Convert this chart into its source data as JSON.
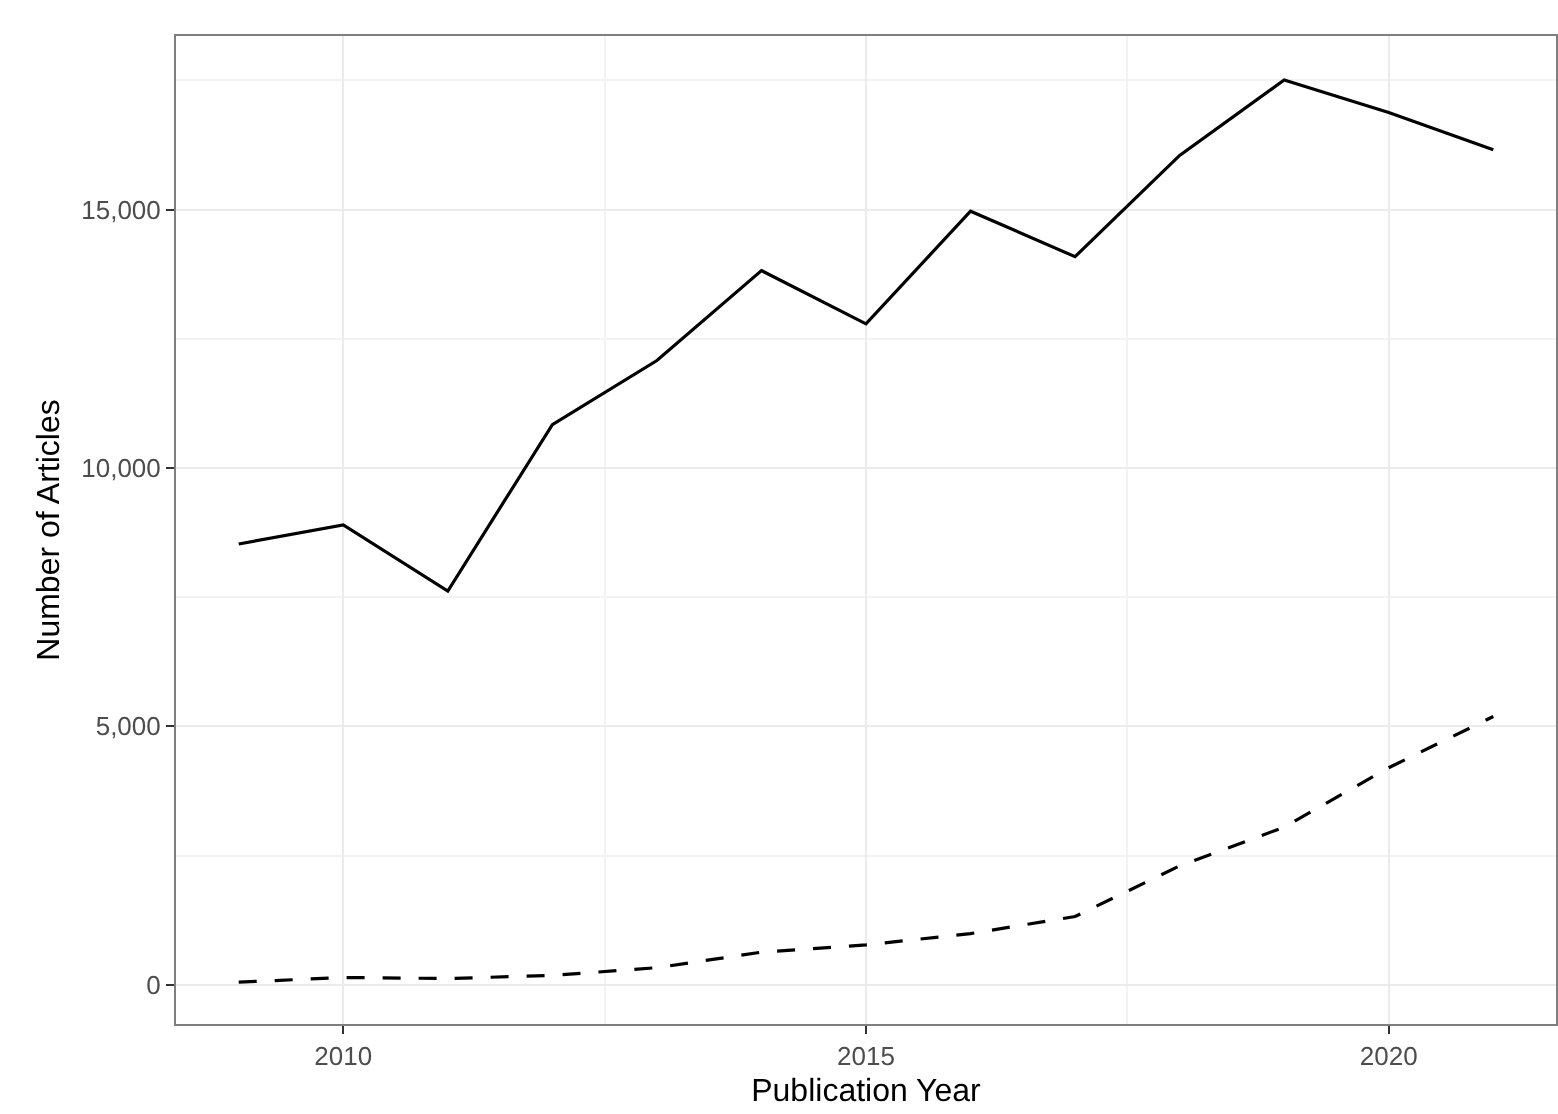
{
  "chart_data": {
    "type": "line",
    "xlabel": "Publication Year",
    "ylabel": "Number of Articles",
    "x": [
      2009,
      2010,
      2011,
      2012,
      2013,
      2014,
      2015,
      2016,
      2017,
      2018,
      2019,
      2020,
      2021
    ],
    "series": [
      {
        "color": "#000000",
        "line_style": "solid",
        "values": [
          8530,
          8900,
          7620,
          10840,
          12080,
          13820,
          12790,
          14970,
          14090,
          16050,
          17510,
          16880,
          16160
        ]
      },
      {
        "color": "#000000",
        "line_style": "dashed",
        "values": [
          50,
          140,
          120,
          180,
          330,
          630,
          770,
          990,
          1320,
          2300,
          3050,
          4200,
          5190
        ]
      }
    ],
    "xlim": [
      2008.4,
      2021.6
    ],
    "xticks": [
      2010,
      2015,
      2020
    ],
    "ylim": [
      -760,
      18360
    ],
    "yticks": [
      {
        "value": 0,
        "label": "0"
      },
      {
        "value": 5000,
        "label": "5,000"
      },
      {
        "value": 10000,
        "label": "10,000"
      },
      {
        "value": 15000,
        "label": "15,000"
      }
    ],
    "grid": true,
    "marker": "none"
  }
}
